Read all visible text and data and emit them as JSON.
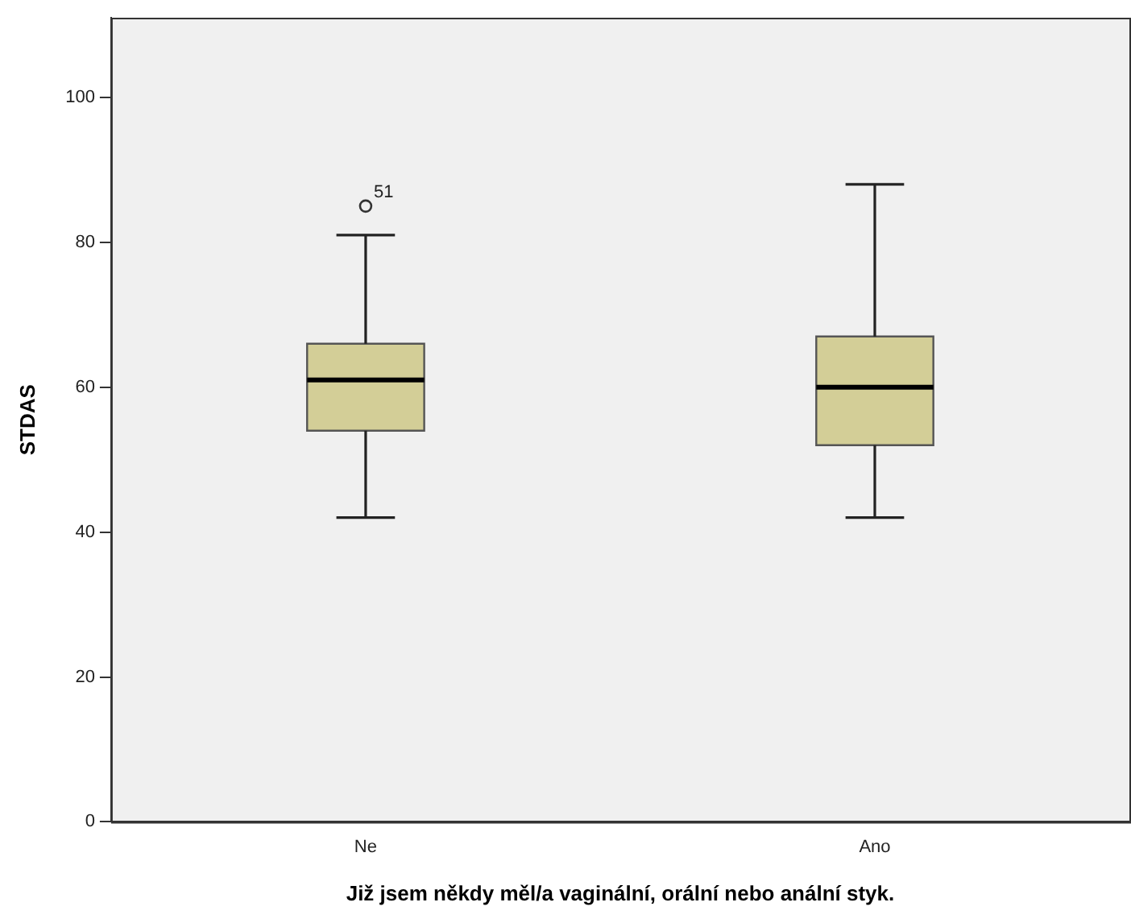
{
  "chart_data": {
    "type": "box",
    "xlabel": "Již jsem někdy měl/a vaginální, orální nebo anální styk.",
    "ylabel": "STDAS",
    "categories": [
      "Ne",
      "Ano"
    ],
    "boxes": [
      {
        "low": 42,
        "q1": 54,
        "median": 61,
        "q3": 66,
        "high": 81,
        "outliers": [
          85
        ]
      },
      {
        "low": 42,
        "q1": 52,
        "median": 60,
        "q3": 67,
        "high": 88
      }
    ],
    "color": "#d3ce97",
    "ylim": [
      0,
      111
    ],
    "yticks": [
      0,
      20,
      40,
      60,
      80,
      100
    ],
    "grid": false,
    "legend": false,
    "annotations": [
      "51"
    ]
  }
}
